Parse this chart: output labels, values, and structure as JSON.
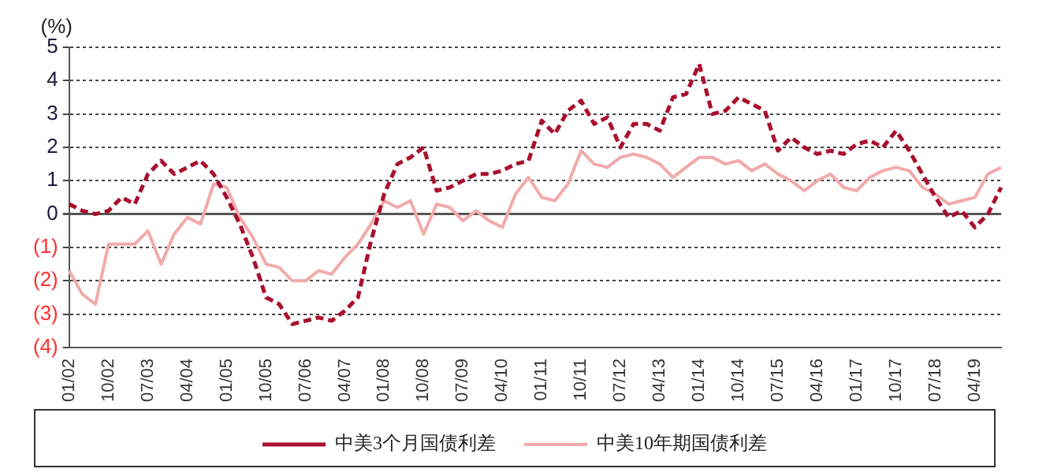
{
  "chart_data": {
    "type": "line",
    "ylabel": "(%)",
    "categories": [
      "01/02",
      null,
      null,
      "10/02",
      null,
      null,
      "07/03",
      null,
      null,
      "04/04",
      null,
      null,
      "01/05",
      null,
      null,
      "10/05",
      null,
      null,
      "07/06",
      null,
      null,
      "04/07",
      null,
      null,
      "01/08",
      null,
      null,
      "10/08",
      null,
      null,
      "07/09",
      null,
      null,
      "04/10",
      null,
      null,
      "01/11",
      null,
      null,
      "10/11",
      null,
      null,
      "07/12",
      null,
      null,
      "04/13",
      null,
      null,
      "01/14",
      null,
      null,
      "10/14",
      null,
      null,
      "07/15",
      null,
      null,
      "04/16",
      null,
      null,
      "01/17",
      null,
      null,
      "10/17",
      null,
      null,
      "07/18",
      null,
      null,
      "04/19",
      null,
      null
    ],
    "series": [
      {
        "name": "中美3个月国债利差",
        "color": "#a8102e",
        "line_style": "dashed",
        "values": [
          0.3,
          0.1,
          0.0,
          0.1,
          0.5,
          0.3,
          1.2,
          1.6,
          1.2,
          1.4,
          1.6,
          1.2,
          0.5,
          -0.3,
          -1.3,
          -2.5,
          -2.7,
          -3.3,
          -3.2,
          -3.1,
          -3.2,
          -2.9,
          -2.5,
          -0.8,
          0.6,
          1.5,
          1.7,
          2.0,
          0.7,
          0.8,
          1.0,
          1.2,
          1.2,
          1.3,
          1.5,
          1.6,
          2.8,
          2.4,
          3.1,
          3.4,
          2.7,
          2.9,
          2.0,
          2.7,
          2.7,
          2.5,
          3.5,
          3.6,
          4.5,
          3.0,
          3.1,
          3.5,
          3.3,
          3.1,
          1.9,
          2.3,
          2.0,
          1.8,
          1.9,
          1.8,
          2.1,
          2.2,
          2.0,
          2.5,
          1.9,
          1.2,
          0.5,
          -0.1,
          0.1,
          -0.4,
          0.0,
          0.8
        ]
      },
      {
        "name": "中美10年期国债利差",
        "color": "#f2aaaa",
        "line_style": "solid",
        "values": [
          -1.7,
          -2.4,
          -2.7,
          -0.9,
          -0.9,
          -0.9,
          -0.5,
          -1.5,
          -0.6,
          -0.1,
          -0.3,
          0.9,
          0.8,
          -0.1,
          -0.7,
          -1.5,
          -1.6,
          -2.0,
          -2.0,
          -1.7,
          -1.8,
          -1.3,
          -0.9,
          -0.3,
          0.4,
          0.2,
          0.4,
          -0.6,
          0.3,
          0.2,
          -0.2,
          0.1,
          -0.2,
          -0.4,
          0.6,
          1.1,
          0.5,
          0.4,
          0.9,
          1.9,
          1.5,
          1.4,
          1.7,
          1.8,
          1.7,
          1.5,
          1.1,
          1.4,
          1.7,
          1.7,
          1.5,
          1.6,
          1.3,
          1.5,
          1.2,
          1.0,
          0.7,
          1.0,
          1.2,
          0.8,
          0.7,
          1.1,
          1.3,
          1.4,
          1.3,
          0.8,
          0.6,
          0.3,
          0.4,
          0.5,
          1.2,
          1.4
        ]
      }
    ],
    "ylim": [
      -4,
      5
    ],
    "yticks": [
      {
        "value": -4,
        "label": "(4)"
      },
      {
        "value": -3,
        "label": "(3)"
      },
      {
        "value": -2,
        "label": "(2)"
      },
      {
        "value": -1,
        "label": "(1)"
      },
      0,
      1,
      2,
      3,
      4,
      5
    ],
    "grid": "y",
    "legend": "bottom",
    "marker": "none"
  }
}
